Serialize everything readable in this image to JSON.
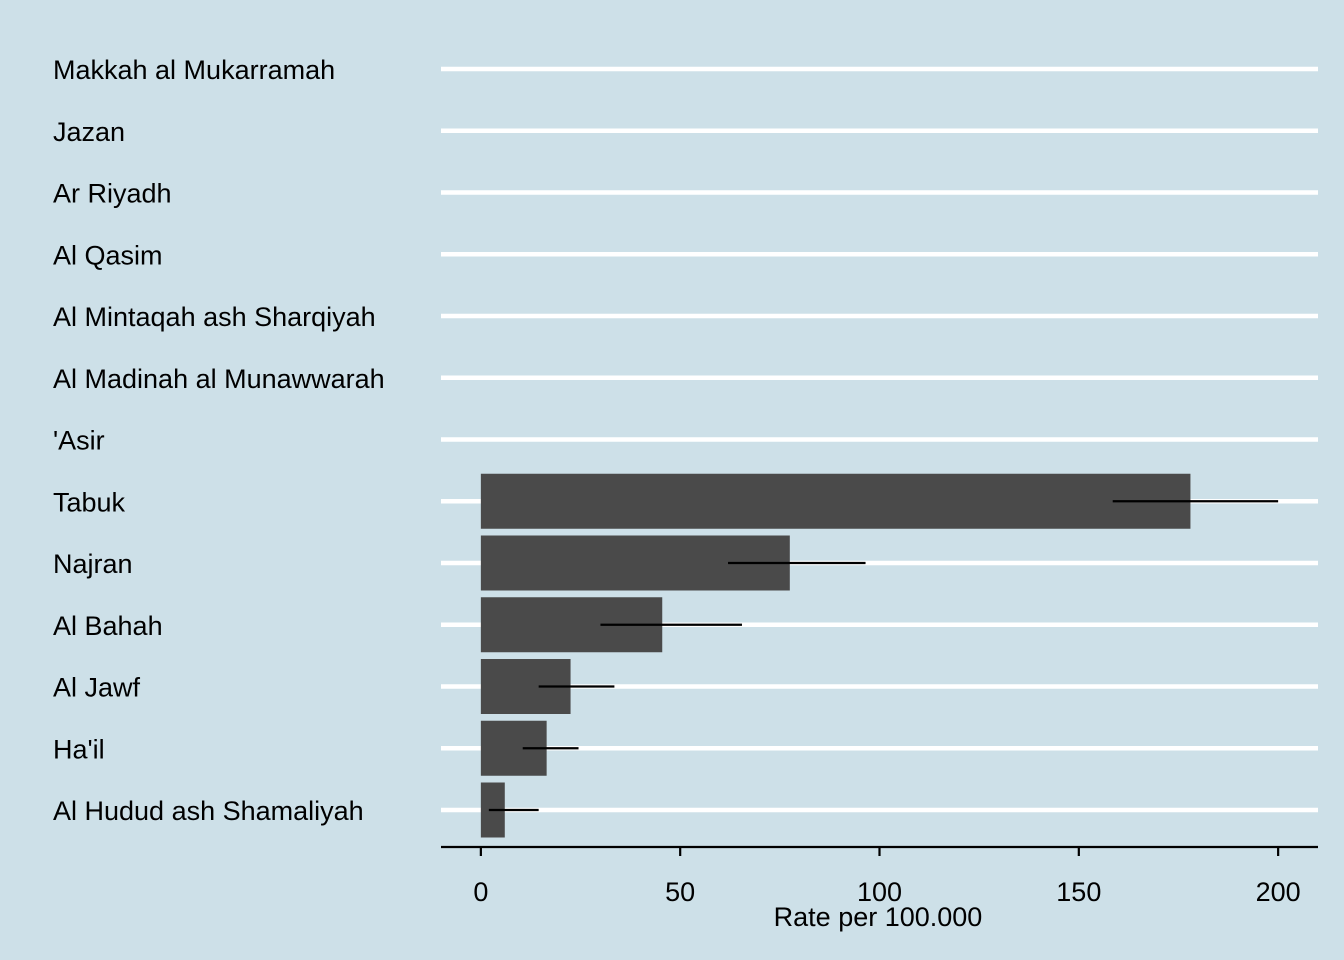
{
  "chart_data": {
    "type": "bar",
    "orientation": "horizontal",
    "title": "",
    "xlabel": "Rate per 100.000",
    "ylabel": "",
    "categories": [
      "Makkah al Mukarramah",
      "Jazan",
      "Ar Riyadh",
      "Al Qasim",
      "Al Mintaqah ash Sharqiyah",
      "Al Madinah al Munawwarah",
      "'Asir",
      "Tabuk",
      "Najran",
      "Al Bahah",
      "Al Jawf",
      "Ha'il",
      "Al Hudud ash Shamaliyah"
    ],
    "values": [
      0,
      0,
      0,
      0,
      0,
      0,
      0,
      178,
      77.5,
      45.5,
      22.5,
      16.5,
      6
    ],
    "error_low": [
      null,
      null,
      null,
      null,
      null,
      null,
      null,
      158.5,
      62,
      30,
      14.5,
      10.5,
      2
    ],
    "error_high": [
      null,
      null,
      null,
      null,
      null,
      null,
      null,
      200,
      96.5,
      65.5,
      33.5,
      24.5,
      14.5
    ],
    "xlim": [
      -10,
      210
    ],
    "xticks": [
      0,
      50,
      100,
      150,
      200
    ],
    "xtick_labels": [
      "0",
      "50",
      "100",
      "150",
      "200"
    ],
    "grid": "horizontal",
    "legend": "none",
    "colors": {
      "background": "#cde0e8",
      "bar": "#4a4a4a",
      "gridline": "#ffffff",
      "axis": "#000000",
      "errorbar": "#000000"
    }
  }
}
